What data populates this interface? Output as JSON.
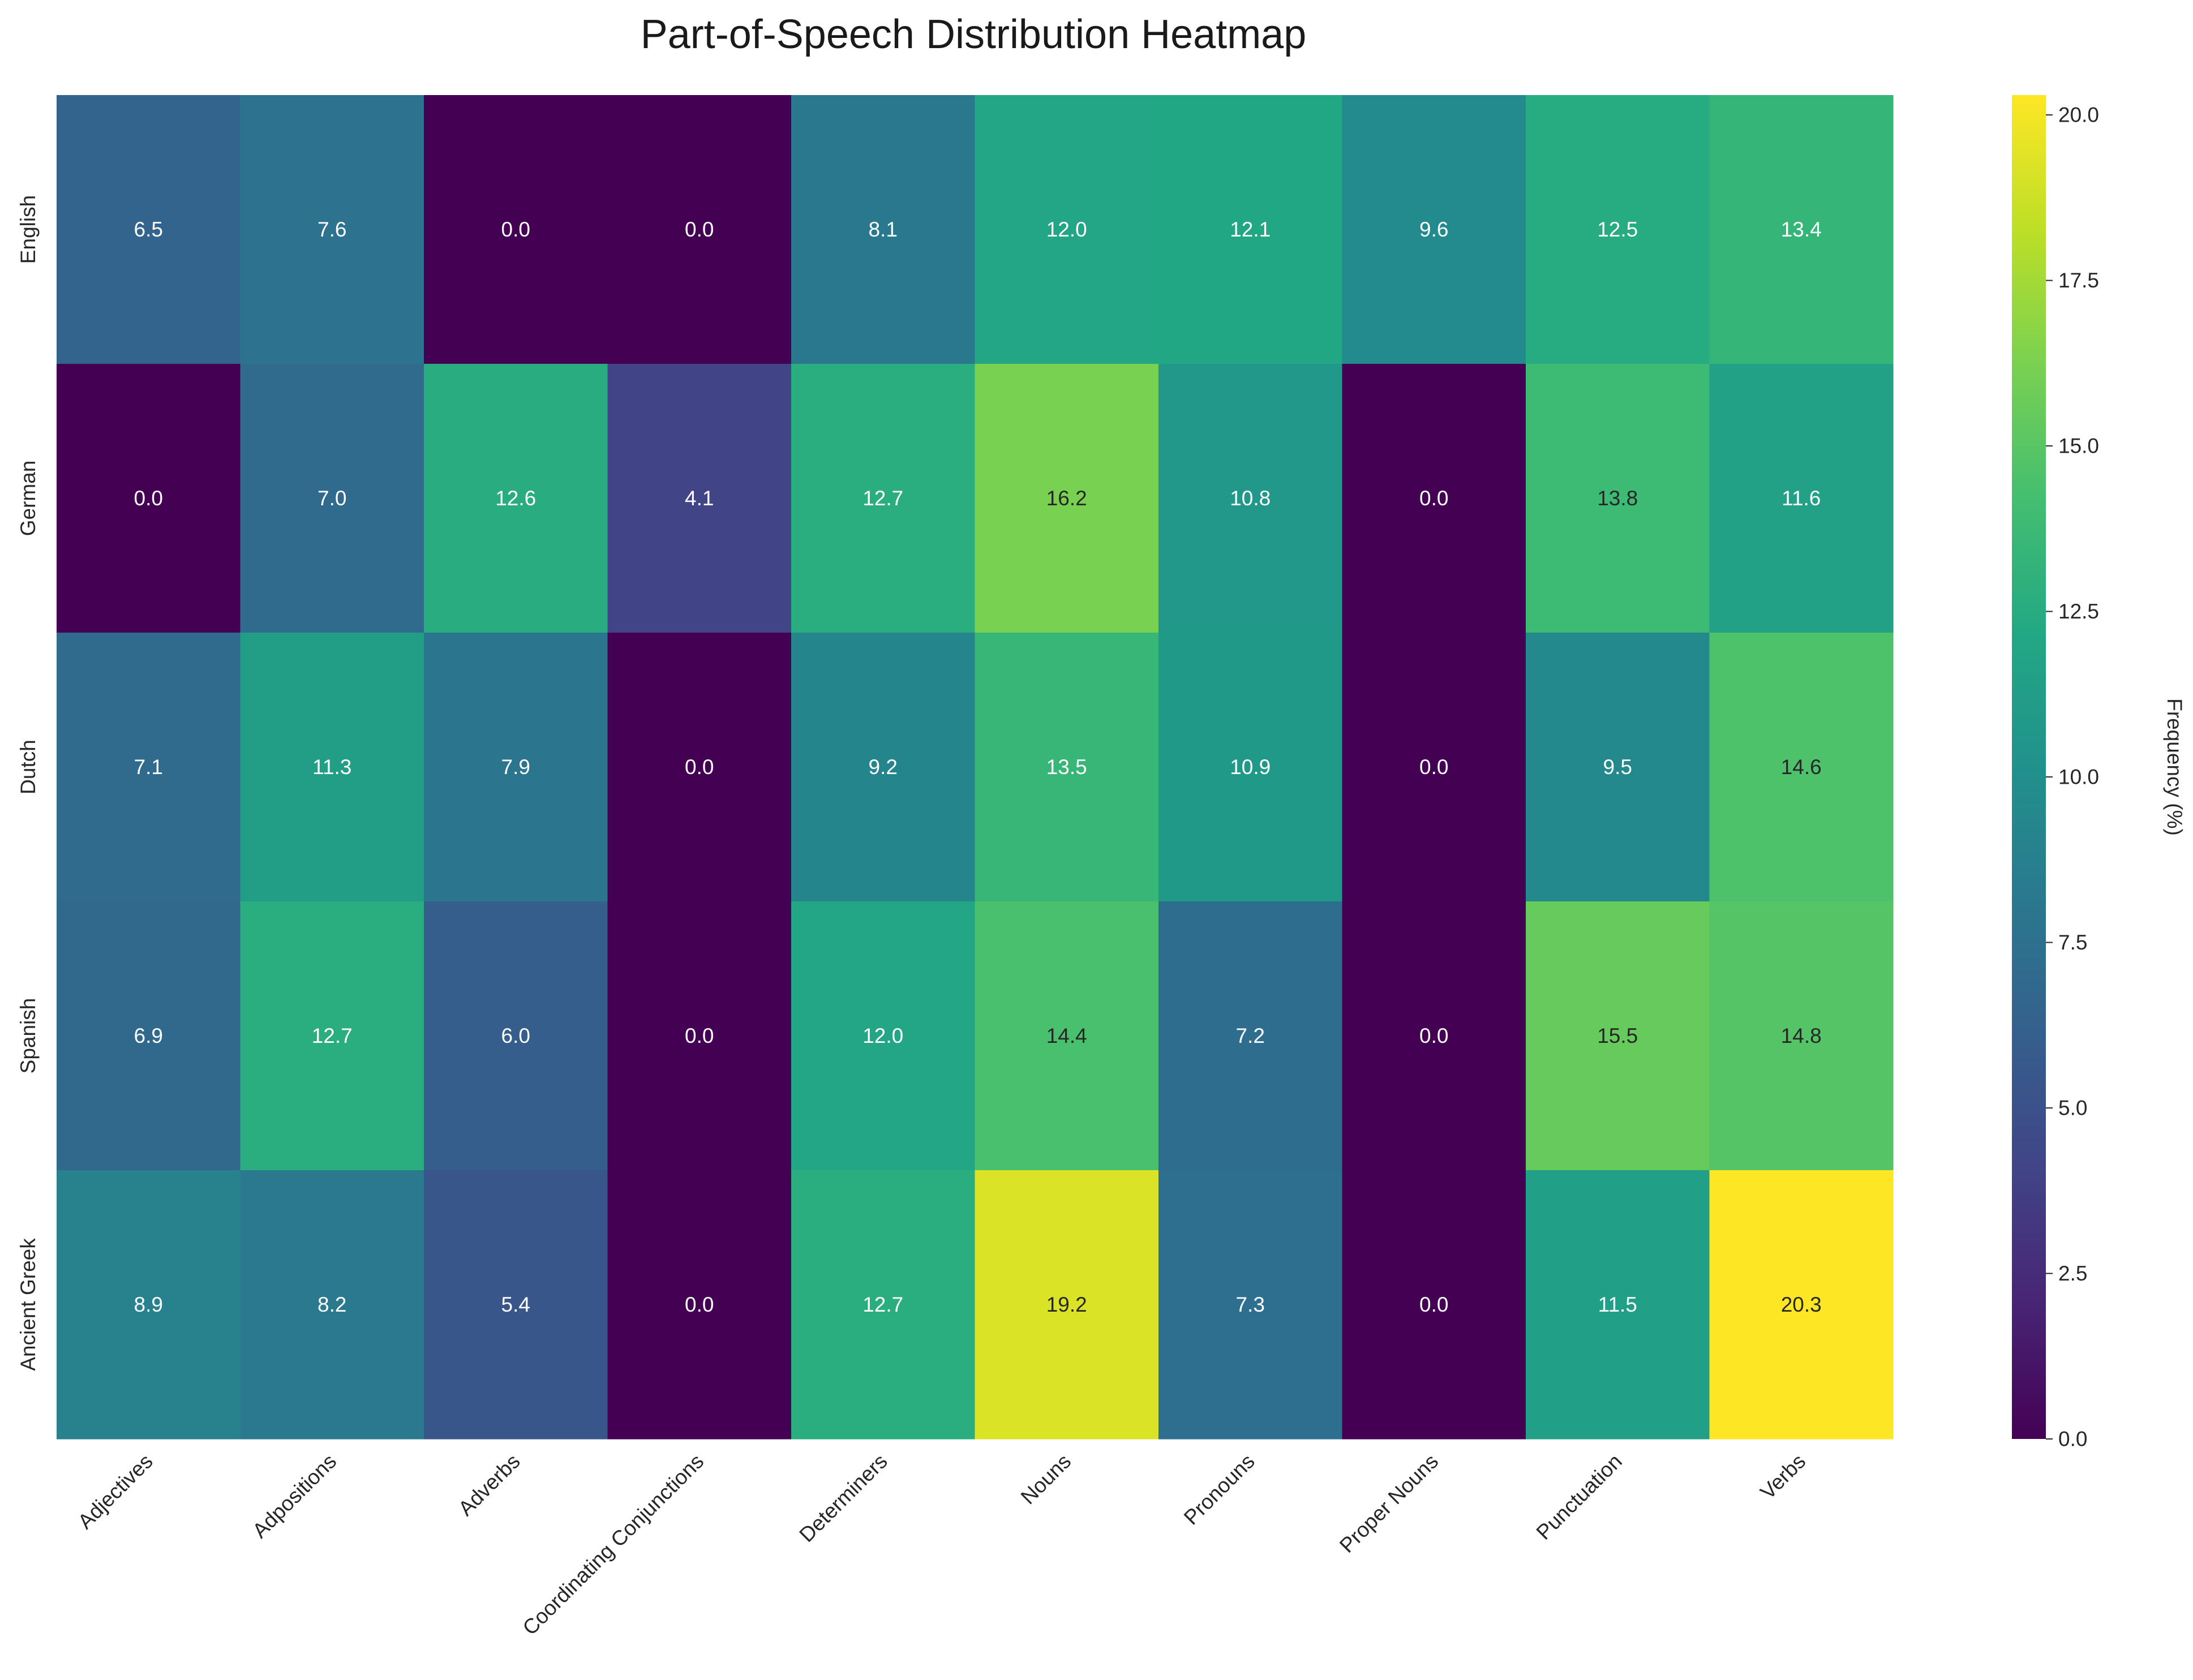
{
  "chart_data": {
    "type": "heatmap",
    "title": "Part-of-Speech Distribution Heatmap",
    "xlabel": "",
    "ylabel": "",
    "colorbar_label": "Frequency (%)",
    "colormap": "viridis",
    "vmin": 0.0,
    "vmax": 20.3,
    "colorbar_ticks": [
      "0.0",
      "2.5",
      "5.0",
      "7.5",
      "10.0",
      "12.5",
      "15.0",
      "17.5",
      "20.0"
    ],
    "x_categories": [
      "Adjectives",
      "Adpositions",
      "Adverbs",
      "Coordinating Conjunctions",
      "Determiners",
      "Nouns",
      "Pronouns",
      "Proper Nouns",
      "Punctuation",
      "Verbs"
    ],
    "y_categories": [
      "English",
      "German",
      "Dutch",
      "Spanish",
      "Ancient Greek"
    ],
    "values": [
      [
        6.5,
        7.6,
        0.0,
        0.0,
        8.1,
        12.0,
        12.1,
        9.6,
        12.5,
        13.4
      ],
      [
        0.0,
        7.0,
        12.6,
        4.1,
        12.7,
        16.2,
        10.8,
        0.0,
        13.8,
        11.6
      ],
      [
        7.1,
        11.3,
        7.9,
        0.0,
        9.2,
        13.5,
        10.9,
        0.0,
        9.5,
        14.6
      ],
      [
        6.9,
        12.7,
        6.0,
        0.0,
        12.0,
        14.4,
        7.2,
        0.0,
        15.5,
        14.8
      ],
      [
        8.9,
        8.2,
        5.4,
        0.0,
        12.7,
        19.2,
        7.3,
        0.0,
        11.5,
        20.3
      ]
    ],
    "annotation_format": "0.0",
    "grid": false
  }
}
